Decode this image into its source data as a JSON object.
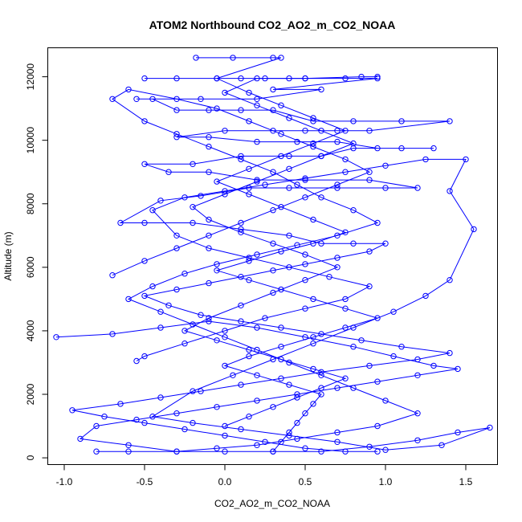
{
  "chart_data": {
    "type": "scatter",
    "title": "ATOM2 Northbound CO2_AO2_m_CO2_NOAA",
    "xlabel": "CO2_AO2_m_CO2_NOAA",
    "ylabel": "Altitude (m)",
    "xlim": [
      -1.1,
      1.7
    ],
    "ylim": [
      -200,
      12900
    ],
    "x_ticks": [
      -1.0,
      -0.5,
      0.0,
      0.5,
      1.0,
      1.5
    ],
    "x_tick_labels": [
      "-1.0",
      "-0.5",
      "0.0",
      "0.5",
      "1.0",
      "1.5"
    ],
    "y_ticks": [
      0,
      2000,
      4000,
      6000,
      8000,
      10000,
      12000
    ],
    "y_tick_labels": [
      "0",
      "2000",
      "4000",
      "6000",
      "8000",
      "10000",
      "12000"
    ],
    "grid": false,
    "legend": "none",
    "series_color": "#0000ff",
    "marker": "open-circle",
    "connected": true,
    "series": [
      {
        "points": [
          [
            -0.18,
            12600
          ],
          [
            0.05,
            12600
          ],
          [
            0.3,
            12600
          ],
          [
            0.35,
            12600
          ],
          [
            -0.05,
            11950
          ],
          [
            0.1,
            11950
          ],
          [
            0.25,
            11950
          ],
          [
            0.4,
            11950
          ],
          [
            0.5,
            11950
          ],
          [
            0.75,
            11950
          ],
          [
            0.95,
            11950
          ],
          [
            0.3,
            11600
          ],
          [
            0.6,
            11600
          ],
          [
            0.2,
            11300
          ],
          [
            -0.15,
            11300
          ],
          [
            -0.55,
            11300
          ],
          [
            -0.45,
            11300
          ],
          [
            -0.3,
            10950
          ],
          [
            -0.1,
            10950
          ],
          [
            0.1,
            10950
          ],
          [
            0.3,
            10950
          ],
          [
            0.55,
            10600
          ],
          [
            0.8,
            10600
          ],
          [
            1.1,
            10600
          ],
          [
            1.4,
            10600
          ],
          [
            0.9,
            10300
          ],
          [
            0.7,
            10300
          ],
          [
            0.5,
            10300
          ],
          [
            0.3,
            10300
          ],
          [
            0.0,
            10300
          ],
          [
            -0.3,
            10100
          ],
          [
            -0.1,
            10100
          ],
          [
            0.2,
            9950
          ],
          [
            0.45,
            9950
          ],
          [
            0.7,
            9950
          ],
          [
            0.95,
            9750
          ],
          [
            1.3,
            9750
          ],
          [
            1.1,
            9750
          ],
          [
            0.8,
            9750
          ],
          [
            0.6,
            9500
          ],
          [
            0.4,
            9500
          ],
          [
            0.1,
            9500
          ],
          [
            -0.2,
            9250
          ],
          [
            -0.5,
            9250
          ],
          [
            -0.35,
            9000
          ],
          [
            -0.1,
            9000
          ],
          [
            0.2,
            8750
          ],
          [
            0.5,
            8750
          ],
          [
            0.9,
            8750
          ],
          [
            1.2,
            8500
          ],
          [
            1.0,
            8500
          ],
          [
            0.7,
            8500
          ],
          [
            0.4,
            8500
          ],
          [
            0.15,
            8500
          ],
          [
            -0.15,
            8250
          ],
          [
            -0.4,
            8100
          ],
          [
            -0.65,
            7400
          ],
          [
            -0.5,
            7400
          ],
          [
            -0.2,
            7400
          ],
          [
            0.1,
            7200
          ],
          [
            0.4,
            7000
          ],
          [
            0.6,
            6750
          ],
          [
            0.8,
            6750
          ],
          [
            1.0,
            6750
          ],
          [
            0.9,
            6500
          ],
          [
            0.7,
            6300
          ],
          [
            0.5,
            6100
          ],
          [
            0.3,
            5900
          ],
          [
            0.1,
            5700
          ],
          [
            -0.1,
            5500
          ],
          [
            -0.3,
            5300
          ],
          [
            -0.5,
            5100
          ],
          [
            -0.35,
            4800
          ],
          [
            -0.15,
            4500
          ],
          [
            0.1,
            4300
          ],
          [
            0.35,
            4100
          ],
          [
            0.6,
            3900
          ],
          [
            0.85,
            3700
          ],
          [
            1.1,
            3500
          ],
          [
            1.4,
            3300
          ],
          [
            1.2,
            3100
          ],
          [
            0.9,
            2900
          ],
          [
            0.6,
            2700
          ],
          [
            0.35,
            2500
          ],
          [
            0.1,
            2300
          ],
          [
            -0.15,
            2100
          ],
          [
            -0.4,
            1900
          ],
          [
            -0.65,
            1700
          ],
          [
            -0.95,
            1500
          ],
          [
            -0.75,
            1300
          ],
          [
            -0.5,
            1100
          ],
          [
            -0.25,
            900
          ],
          [
            0.0,
            700
          ],
          [
            0.25,
            500
          ],
          [
            0.5,
            300
          ],
          [
            0.75,
            200
          ],
          [
            0.95,
            200
          ]
        ]
      },
      {
        "points": [
          [
            -1.05,
            3800
          ],
          [
            -0.7,
            3900
          ],
          [
            -0.4,
            4100
          ],
          [
            -0.1,
            4300
          ],
          [
            0.2,
            4100
          ],
          [
            0.5,
            3800
          ],
          [
            0.8,
            3500
          ],
          [
            1.05,
            3200
          ],
          [
            1.3,
            2900
          ],
          [
            1.45,
            2800
          ],
          [
            1.2,
            2600
          ],
          [
            0.95,
            2400
          ],
          [
            0.7,
            2200
          ],
          [
            0.45,
            2000
          ],
          [
            0.2,
            1800
          ],
          [
            -0.05,
            1600
          ],
          [
            -0.3,
            1400
          ],
          [
            -0.55,
            1200
          ],
          [
            -0.8,
            1000
          ],
          [
            -0.9,
            600
          ],
          [
            -0.6,
            400
          ],
          [
            -0.3,
            200
          ],
          [
            0.0,
            200
          ],
          [
            0.3,
            200
          ],
          [
            0.6,
            200
          ],
          [
            0.9,
            350
          ],
          [
            1.2,
            550
          ],
          [
            1.45,
            800
          ],
          [
            1.65,
            950
          ],
          [
            1.35,
            400
          ],
          [
            1.0,
            250
          ],
          [
            0.7,
            500
          ],
          [
            0.4,
            700
          ],
          [
            0.1,
            900
          ],
          [
            -0.2,
            1100
          ],
          [
            -0.45,
            1300
          ],
          [
            -0.2,
            2100
          ],
          [
            0.05,
            2600
          ],
          [
            0.3,
            3100
          ],
          [
            0.55,
            3600
          ],
          [
            0.8,
            4100
          ],
          [
            1.05,
            4600
          ],
          [
            1.25,
            5100
          ],
          [
            1.4,
            5600
          ],
          [
            1.55,
            7200
          ],
          [
            1.4,
            8400
          ],
          [
            1.5,
            9400
          ],
          [
            1.25,
            9400
          ],
          [
            1.0,
            9200
          ],
          [
            0.75,
            9000
          ],
          [
            0.5,
            8800
          ],
          [
            0.25,
            8600
          ],
          [
            0.0,
            8400
          ],
          [
            -0.25,
            8200
          ],
          [
            -0.45,
            7800
          ],
          [
            -0.3,
            7000
          ],
          [
            -0.1,
            6600
          ],
          [
            0.15,
            6300
          ],
          [
            0.4,
            6000
          ],
          [
            0.65,
            5700
          ],
          [
            0.9,
            5400
          ],
          [
            0.75,
            5000
          ],
          [
            0.5,
            4700
          ],
          [
            0.25,
            4400
          ],
          [
            0.0,
            4000
          ],
          [
            -0.25,
            3600
          ],
          [
            -0.5,
            3200
          ],
          [
            -0.55,
            3050
          ]
        ]
      },
      {
        "points": [
          [
            -0.7,
            5750
          ],
          [
            -0.5,
            6200
          ],
          [
            -0.3,
            6600
          ],
          [
            -0.1,
            7000
          ],
          [
            0.1,
            7400
          ],
          [
            0.3,
            7800
          ],
          [
            0.5,
            8200
          ],
          [
            0.7,
            8600
          ],
          [
            0.9,
            9000
          ],
          [
            0.75,
            9400
          ],
          [
            0.55,
            9800
          ],
          [
            0.35,
            10200
          ],
          [
            0.15,
            10600
          ],
          [
            -0.05,
            11000
          ],
          [
            -0.3,
            11300
          ],
          [
            -0.6,
            11600
          ],
          [
            -0.7,
            11300
          ],
          [
            -0.5,
            10600
          ],
          [
            -0.3,
            10200
          ],
          [
            -0.1,
            9800
          ],
          [
            0.1,
            9400
          ],
          [
            0.3,
            9000
          ],
          [
            0.45,
            8600
          ],
          [
            0.6,
            8200
          ],
          [
            0.8,
            7800
          ],
          [
            0.95,
            7400
          ],
          [
            0.7,
            7000
          ],
          [
            0.45,
            6700
          ],
          [
            0.2,
            6400
          ],
          [
            -0.05,
            6100
          ],
          [
            -0.25,
            5800
          ],
          [
            -0.45,
            5400
          ],
          [
            -0.6,
            5000
          ],
          [
            -0.4,
            4600
          ],
          [
            -0.2,
            4200
          ],
          [
            0.0,
            3800
          ],
          [
            0.2,
            3400
          ],
          [
            0.4,
            3000
          ],
          [
            0.6,
            2600
          ],
          [
            0.8,
            2200
          ],
          [
            1.0,
            1800
          ],
          [
            1.2,
            1400
          ],
          [
            0.95,
            1000
          ],
          [
            0.7,
            800
          ],
          [
            0.45,
            600
          ],
          [
            0.2,
            400
          ],
          [
            -0.05,
            300
          ],
          [
            -0.3,
            200
          ],
          [
            -0.6,
            200
          ],
          [
            -0.8,
            200
          ]
        ]
      },
      {
        "points": [
          [
            0.0,
            1000
          ],
          [
            0.15,
            1300
          ],
          [
            0.3,
            1600
          ],
          [
            0.45,
            1900
          ],
          [
            0.6,
            2200
          ],
          [
            0.75,
            2500
          ],
          [
            0.55,
            2800
          ],
          [
            0.35,
            3100
          ],
          [
            0.15,
            3400
          ],
          [
            -0.05,
            3700
          ],
          [
            -0.25,
            4000
          ],
          [
            -0.1,
            4400
          ],
          [
            0.1,
            4800
          ],
          [
            0.3,
            5200
          ],
          [
            0.5,
            5600
          ],
          [
            0.7,
            6000
          ],
          [
            0.5,
            6400
          ],
          [
            0.3,
            6750
          ],
          [
            0.1,
            7100
          ],
          [
            -0.1,
            7500
          ],
          [
            -0.2,
            7900
          ],
          [
            0.0,
            8300
          ],
          [
            0.2,
            8700
          ],
          [
            0.4,
            9100
          ],
          [
            0.6,
            9500
          ],
          [
            0.8,
            9900
          ],
          [
            0.6,
            10300
          ],
          [
            0.4,
            10700
          ],
          [
            0.2,
            11100
          ],
          [
            0.0,
            11500
          ],
          [
            0.2,
            11950
          ],
          [
            0.5,
            11950
          ],
          [
            0.85,
            12000
          ],
          [
            0.95,
            12000
          ]
        ]
      },
      {
        "points": [
          [
            0.3,
            200
          ],
          [
            0.35,
            500
          ],
          [
            0.4,
            800
          ],
          [
            0.45,
            1100
          ],
          [
            0.5,
            1400
          ],
          [
            0.55,
            1700
          ],
          [
            0.6,
            2000
          ],
          [
            0.4,
            2300
          ],
          [
            0.2,
            2600
          ],
          [
            0.0,
            2900
          ],
          [
            0.15,
            3200
          ],
          [
            0.35,
            3500
          ],
          [
            0.55,
            3800
          ],
          [
            0.75,
            4100
          ],
          [
            0.95,
            4400
          ],
          [
            0.75,
            4700
          ],
          [
            0.55,
            5000
          ],
          [
            0.35,
            5300
          ],
          [
            0.15,
            5600
          ],
          [
            -0.05,
            5900
          ],
          [
            0.15,
            6200
          ],
          [
            0.35,
            6500
          ],
          [
            0.55,
            6750
          ],
          [
            0.75,
            7100
          ],
          [
            0.55,
            7500
          ],
          [
            0.35,
            7900
          ],
          [
            0.15,
            8300
          ],
          [
            -0.05,
            8700
          ],
          [
            0.15,
            9100
          ],
          [
            0.35,
            9500
          ],
          [
            0.55,
            9900
          ],
          [
            0.75,
            10300
          ],
          [
            0.55,
            10700
          ],
          [
            0.35,
            11100
          ],
          [
            0.15,
            11500
          ],
          [
            -0.05,
            11950
          ],
          [
            -0.3,
            11950
          ],
          [
            -0.5,
            11950
          ]
        ]
      }
    ]
  }
}
